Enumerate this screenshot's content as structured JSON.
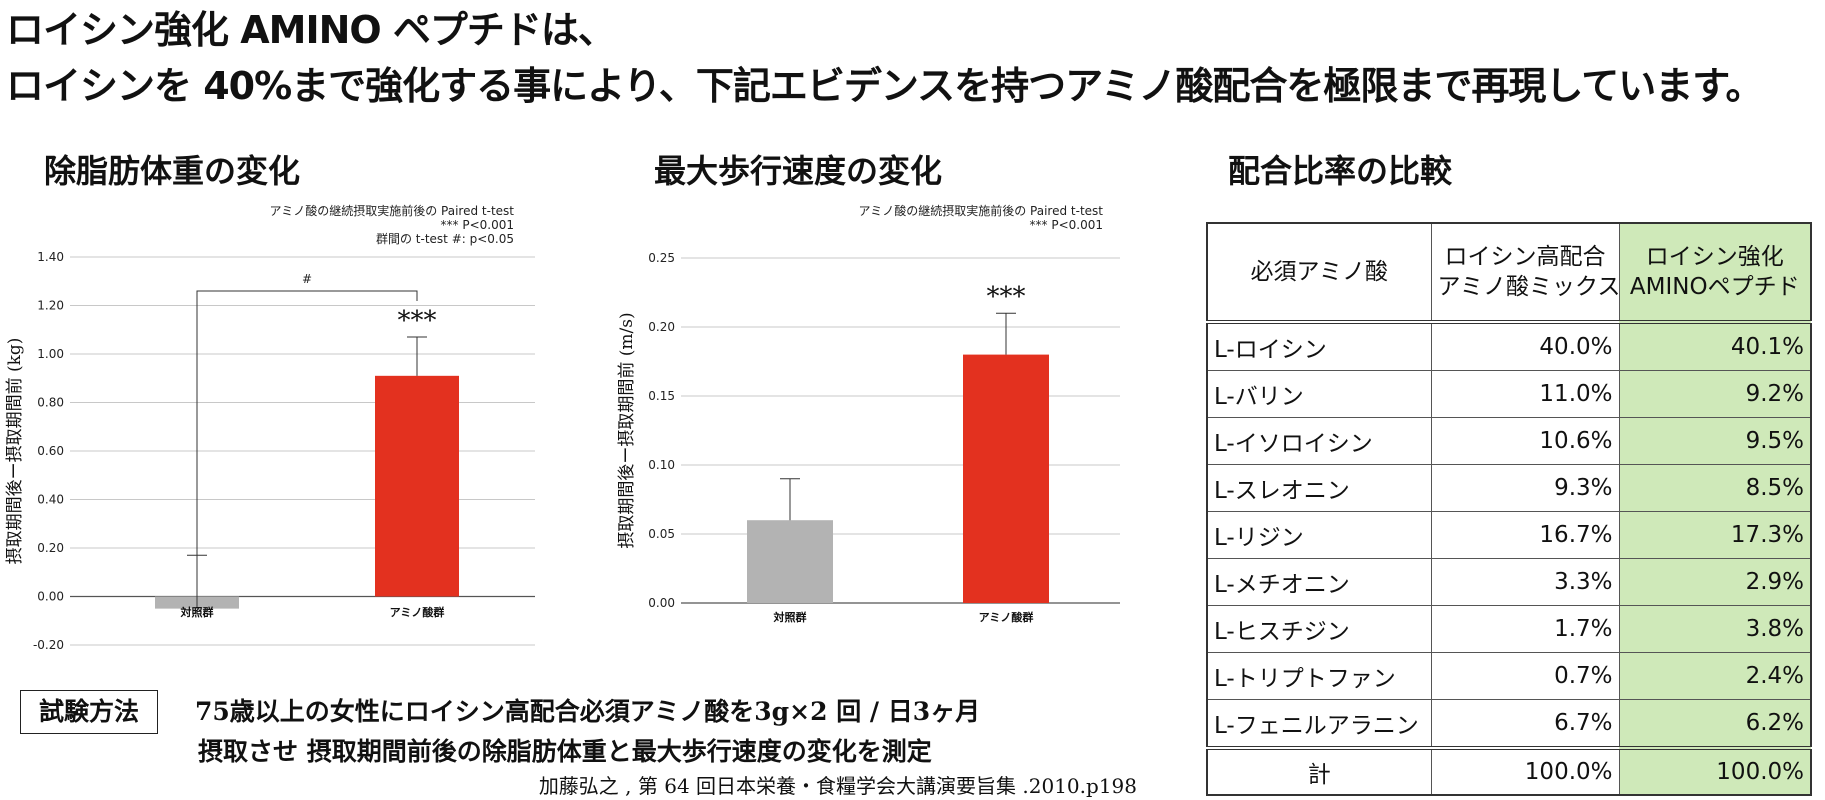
{
  "headline": {
    "line1": "ロイシン強化 AMINO ペプチドは、",
    "line2": "ロイシンを 40%まで強化する事により、下記エビデンスを持つアミノ酸配合を極限まで再現しています。"
  },
  "colors": {
    "control_bar": "#b3b3b3",
    "amino_bar": "#e3311f",
    "table_highlight": "#cfe9b9"
  },
  "chart_data": [
    {
      "type": "bar",
      "title": "除脂肪体重の変化",
      "notes": [
        "アミノ酸の継続摂取実施前後の Paired t-test",
        "*** P<0.001",
        "群間の t-test #: p<0.05"
      ],
      "ylabel": "摂取期間後ー摂取期間前 (kg)",
      "categories": [
        "対照群",
        "アミノ酸群"
      ],
      "values": [
        -0.05,
        0.91
      ],
      "errors": [
        0.22,
        0.16
      ],
      "ylim": [
        -0.2,
        1.4
      ],
      "yticks": [
        "-0.20",
        "0.00",
        "0.20",
        "0.40",
        "0.60",
        "0.80",
        "1.00",
        "1.20",
        "1.40"
      ],
      "significance": "***",
      "group_significance": "#",
      "grid": true
    },
    {
      "type": "bar",
      "title": "最大歩行速度の変化",
      "notes": [
        "アミノ酸の継続摂取実施前後の Paired t-test",
        "*** P<0.001"
      ],
      "ylabel": "摂取期間後ー摂取期間前 (m/s)",
      "categories": [
        "対照群",
        "アミノ酸群"
      ],
      "values": [
        0.06,
        0.18
      ],
      "errors": [
        0.03,
        0.03
      ],
      "ylim": [
        0.0,
        0.25
      ],
      "yticks": [
        "0.00",
        "0.05",
        "0.10",
        "0.15",
        "0.20",
        "0.25"
      ],
      "significance": "***",
      "grid": true
    },
    {
      "type": "table",
      "title": "配合比率の比較",
      "header": [
        "必須アミノ酸",
        "ロイシン高配合\nアミノ酸ミックス",
        "ロイシン強化\nAMINOペプチド"
      ],
      "rows": [
        [
          "L-ロイシン",
          "40.0%",
          "40.1%"
        ],
        [
          "L-バリン",
          "11.0%",
          "9.2%"
        ],
        [
          "L-イソロイシン",
          "10.6%",
          "9.5%"
        ],
        [
          "L-スレオニン",
          "9.3%",
          "8.5%"
        ],
        [
          "L-リジン",
          "16.7%",
          "17.3%"
        ],
        [
          "L-メチオニン",
          "3.3%",
          "2.9%"
        ],
        [
          "L-ヒスチジン",
          "1.7%",
          "3.8%"
        ],
        [
          "L-トリプトファン",
          "0.7%",
          "2.4%"
        ],
        [
          "L-フェニルアラニン",
          "6.7%",
          "6.2%"
        ]
      ],
      "total": [
        "計",
        "100.0%",
        "100.0%"
      ]
    }
  ],
  "method": {
    "label": "試験方法",
    "line1": "75歳以上の女性にロイシン高配合必須アミノ酸を3g×2 回 / 日3ヶ月",
    "line2": "摂取させ 摂取期間前後の除脂肪体重と最大歩行速度の変化を測定",
    "citation": "加藤弘之 , 第 64 回日本栄養・食糧学会大講演要旨集 .2010.p198"
  }
}
